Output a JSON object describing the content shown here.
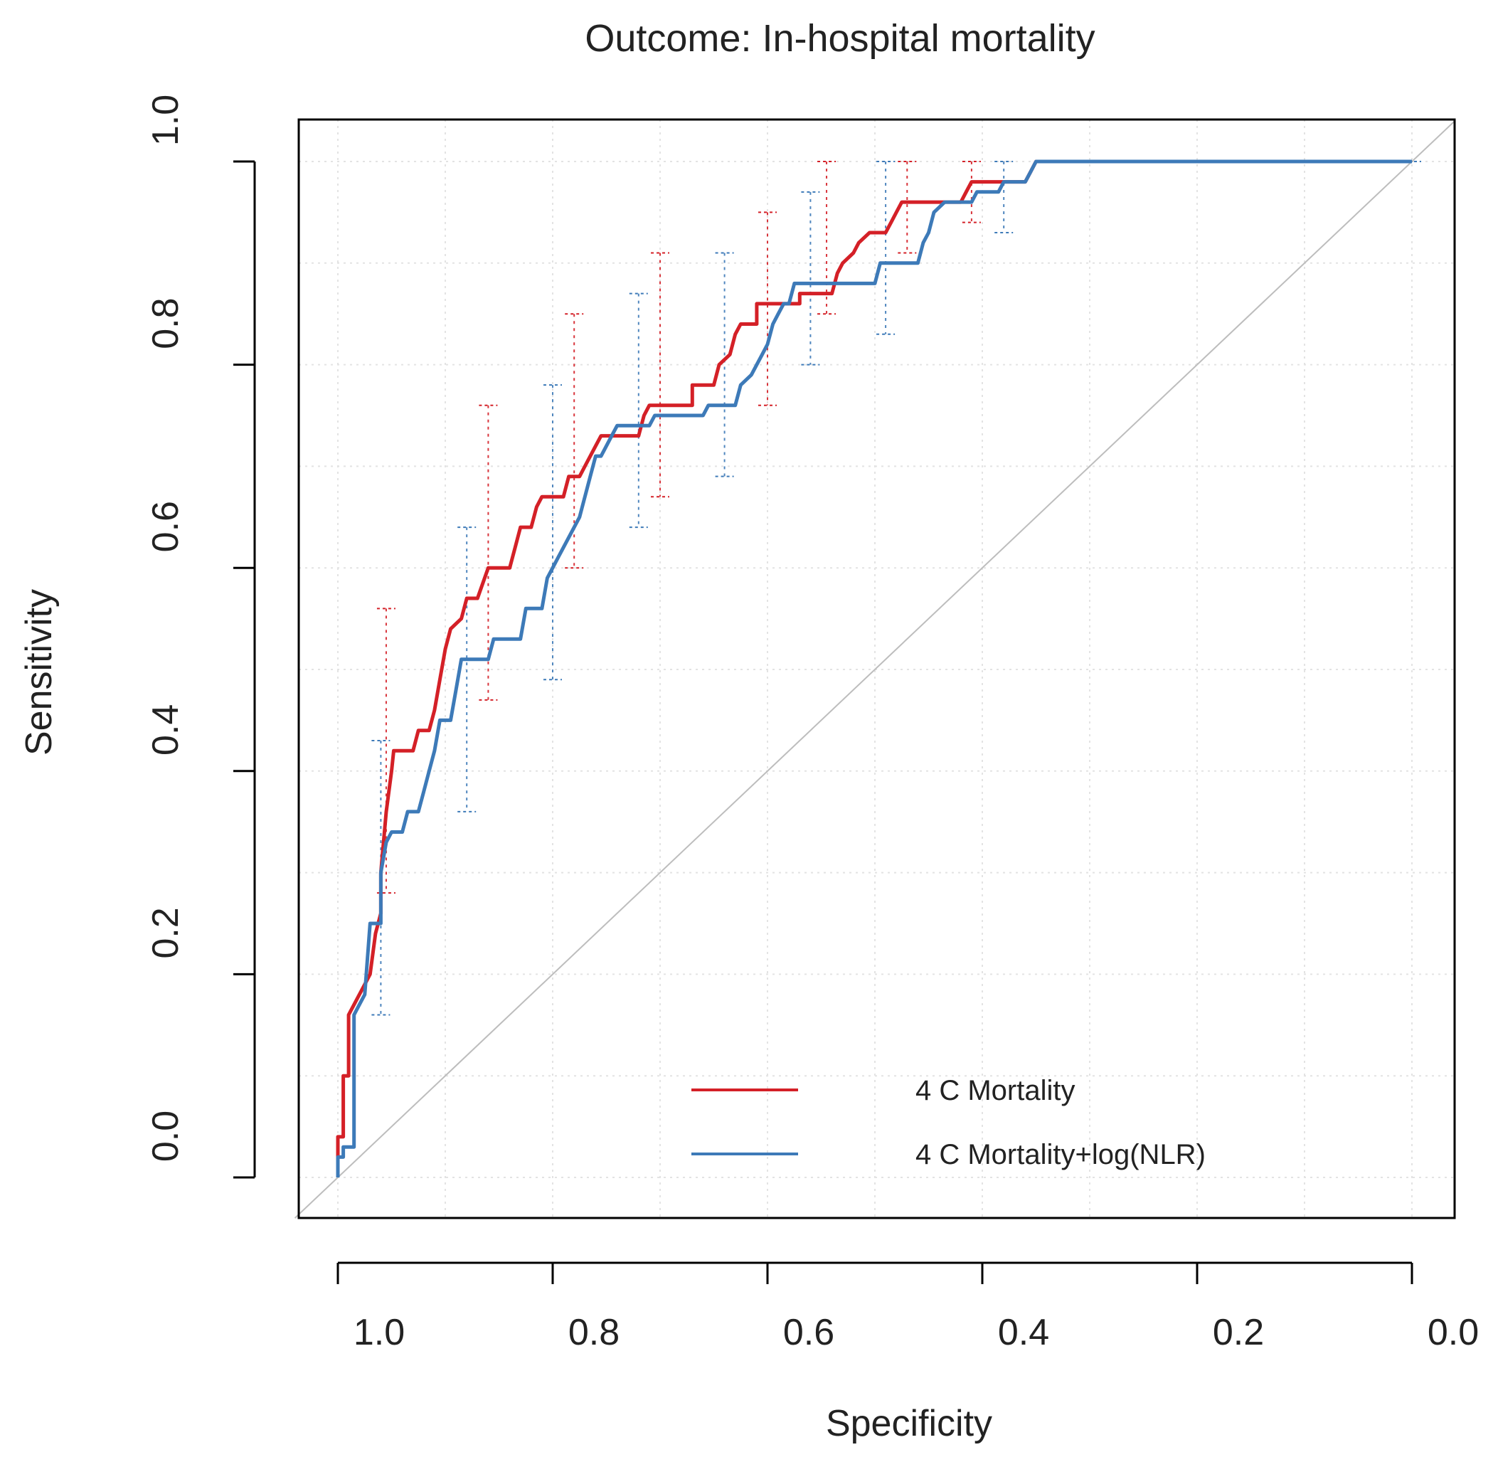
{
  "chart_data": {
    "type": "line",
    "title": "Outcome: In-hospital mortality",
    "xlabel": "Specificity",
    "ylabel": "Sensitivity",
    "xlim": [
      1.04,
      0.0
    ],
    "ylim": [
      -0.04,
      1.04
    ],
    "x_reversed": true,
    "x_ticks": [
      1.0,
      0.8,
      0.6,
      0.4,
      0.2,
      0.0
    ],
    "y_ticks": [
      0.0,
      0.2,
      0.4,
      0.6,
      0.8,
      1.0
    ],
    "x_tick_labels": [
      "1.0",
      "0.8",
      "0.6",
      "0.4",
      "0.2",
      "0.0"
    ],
    "y_tick_labels": [
      "0.0",
      "0.2",
      "0.4",
      "0.6",
      "0.8",
      "1.0"
    ],
    "grid": true,
    "reference_line": {
      "from": [
        1.0,
        0.0
      ],
      "to": [
        0.0,
        1.0
      ],
      "color": "#bdbdbd"
    },
    "legend": {
      "position": "bottom-right",
      "entries": [
        "4 C Mortality",
        "4 C Mortality+log(NLR)"
      ]
    },
    "series": [
      {
        "name": "4 C Mortality",
        "color": "#d42027",
        "points": [
          [
            1.0,
            0.0
          ],
          [
            1.0,
            0.04
          ],
          [
            0.995,
            0.04
          ],
          [
            0.995,
            0.1
          ],
          [
            0.99,
            0.1
          ],
          [
            0.99,
            0.16
          ],
          [
            0.985,
            0.17
          ],
          [
            0.98,
            0.18
          ],
          [
            0.975,
            0.19
          ],
          [
            0.97,
            0.2
          ],
          [
            0.965,
            0.24
          ],
          [
            0.96,
            0.26
          ],
          [
            0.96,
            0.3
          ],
          [
            0.955,
            0.36
          ],
          [
            0.95,
            0.4
          ],
          [
            0.948,
            0.42
          ],
          [
            0.93,
            0.42
          ],
          [
            0.925,
            0.44
          ],
          [
            0.915,
            0.44
          ],
          [
            0.91,
            0.46
          ],
          [
            0.905,
            0.49
          ],
          [
            0.9,
            0.52
          ],
          [
            0.895,
            0.54
          ],
          [
            0.885,
            0.55
          ],
          [
            0.88,
            0.57
          ],
          [
            0.87,
            0.57
          ],
          [
            0.86,
            0.6
          ],
          [
            0.84,
            0.6
          ],
          [
            0.835,
            0.62
          ],
          [
            0.83,
            0.64
          ],
          [
            0.82,
            0.64
          ],
          [
            0.815,
            0.66
          ],
          [
            0.81,
            0.67
          ],
          [
            0.79,
            0.67
          ],
          [
            0.785,
            0.69
          ],
          [
            0.775,
            0.69
          ],
          [
            0.77,
            0.7
          ],
          [
            0.76,
            0.72
          ],
          [
            0.755,
            0.73
          ],
          [
            0.72,
            0.73
          ],
          [
            0.715,
            0.75
          ],
          [
            0.71,
            0.76
          ],
          [
            0.67,
            0.76
          ],
          [
            0.67,
            0.78
          ],
          [
            0.65,
            0.78
          ],
          [
            0.645,
            0.8
          ],
          [
            0.635,
            0.81
          ],
          [
            0.63,
            0.83
          ],
          [
            0.625,
            0.84
          ],
          [
            0.61,
            0.84
          ],
          [
            0.61,
            0.86
          ],
          [
            0.57,
            0.86
          ],
          [
            0.57,
            0.87
          ],
          [
            0.54,
            0.87
          ],
          [
            0.535,
            0.89
          ],
          [
            0.53,
            0.9
          ],
          [
            0.52,
            0.91
          ],
          [
            0.515,
            0.92
          ],
          [
            0.505,
            0.93
          ],
          [
            0.49,
            0.93
          ],
          [
            0.485,
            0.94
          ],
          [
            0.48,
            0.95
          ],
          [
            0.475,
            0.96
          ],
          [
            0.42,
            0.96
          ],
          [
            0.415,
            0.97
          ],
          [
            0.41,
            0.98
          ],
          [
            0.36,
            0.98
          ],
          [
            0.355,
            0.99
          ],
          [
            0.35,
            1.0
          ],
          [
            0.0,
            1.0
          ]
        ],
        "ci_bars": [
          {
            "spec": 0.955,
            "lo": 0.28,
            "hi": 0.56
          },
          {
            "spec": 0.86,
            "lo": 0.47,
            "hi": 0.76
          },
          {
            "spec": 0.78,
            "lo": 0.6,
            "hi": 0.85
          },
          {
            "spec": 0.7,
            "lo": 0.67,
            "hi": 0.91
          },
          {
            "spec": 0.6,
            "lo": 0.76,
            "hi": 0.95
          },
          {
            "spec": 0.545,
            "lo": 0.85,
            "hi": 1.0
          },
          {
            "spec": 0.47,
            "lo": 0.91,
            "hi": 1.0
          },
          {
            "spec": 0.41,
            "lo": 0.94,
            "hi": 1.0
          }
        ]
      },
      {
        "name": "4 C Mortality+log(NLR)",
        "color": "#3d7ab8",
        "points": [
          [
            1.0,
            0.0
          ],
          [
            1.0,
            0.02
          ],
          [
            0.995,
            0.02
          ],
          [
            0.995,
            0.03
          ],
          [
            0.985,
            0.03
          ],
          [
            0.985,
            0.16
          ],
          [
            0.98,
            0.17
          ],
          [
            0.975,
            0.18
          ],
          [
            0.97,
            0.25
          ],
          [
            0.96,
            0.25
          ],
          [
            0.96,
            0.3
          ],
          [
            0.955,
            0.33
          ],
          [
            0.95,
            0.34
          ],
          [
            0.94,
            0.34
          ],
          [
            0.935,
            0.36
          ],
          [
            0.925,
            0.36
          ],
          [
            0.92,
            0.38
          ],
          [
            0.915,
            0.4
          ],
          [
            0.91,
            0.42
          ],
          [
            0.905,
            0.45
          ],
          [
            0.895,
            0.45
          ],
          [
            0.89,
            0.48
          ],
          [
            0.885,
            0.51
          ],
          [
            0.86,
            0.51
          ],
          [
            0.855,
            0.53
          ],
          [
            0.83,
            0.53
          ],
          [
            0.825,
            0.56
          ],
          [
            0.81,
            0.56
          ],
          [
            0.805,
            0.59
          ],
          [
            0.8,
            0.6
          ],
          [
            0.795,
            0.61
          ],
          [
            0.79,
            0.62
          ],
          [
            0.785,
            0.63
          ],
          [
            0.775,
            0.65
          ],
          [
            0.77,
            0.67
          ],
          [
            0.765,
            0.69
          ],
          [
            0.76,
            0.71
          ],
          [
            0.755,
            0.71
          ],
          [
            0.745,
            0.73
          ],
          [
            0.74,
            0.74
          ],
          [
            0.71,
            0.74
          ],
          [
            0.705,
            0.75
          ],
          [
            0.66,
            0.75
          ],
          [
            0.655,
            0.76
          ],
          [
            0.63,
            0.76
          ],
          [
            0.625,
            0.78
          ],
          [
            0.615,
            0.79
          ],
          [
            0.61,
            0.8
          ],
          [
            0.605,
            0.81
          ],
          [
            0.6,
            0.82
          ],
          [
            0.595,
            0.84
          ],
          [
            0.59,
            0.85
          ],
          [
            0.585,
            0.86
          ],
          [
            0.58,
            0.86
          ],
          [
            0.575,
            0.88
          ],
          [
            0.5,
            0.88
          ],
          [
            0.495,
            0.9
          ],
          [
            0.46,
            0.9
          ],
          [
            0.455,
            0.92
          ],
          [
            0.45,
            0.93
          ],
          [
            0.445,
            0.95
          ],
          [
            0.435,
            0.96
          ],
          [
            0.41,
            0.96
          ],
          [
            0.405,
            0.97
          ],
          [
            0.385,
            0.97
          ],
          [
            0.38,
            0.98
          ],
          [
            0.36,
            0.98
          ],
          [
            0.355,
            0.99
          ],
          [
            0.35,
            1.0
          ],
          [
            0.0,
            1.0
          ]
        ],
        "ci_bars": [
          {
            "spec": 0.96,
            "lo": 0.16,
            "hi": 0.43
          },
          {
            "spec": 0.88,
            "lo": 0.36,
            "hi": 0.64
          },
          {
            "spec": 0.8,
            "lo": 0.49,
            "hi": 0.78
          },
          {
            "spec": 0.72,
            "lo": 0.64,
            "hi": 0.87
          },
          {
            "spec": 0.64,
            "lo": 0.69,
            "hi": 0.91
          },
          {
            "spec": 0.56,
            "lo": 0.8,
            "hi": 0.97
          },
          {
            "spec": 0.49,
            "lo": 0.83,
            "hi": 1.0
          },
          {
            "spec": 0.38,
            "lo": 0.93,
            "hi": 1.0
          },
          {
            "spec": 0.0,
            "lo": 1.0,
            "hi": 1.0
          }
        ]
      }
    ]
  }
}
